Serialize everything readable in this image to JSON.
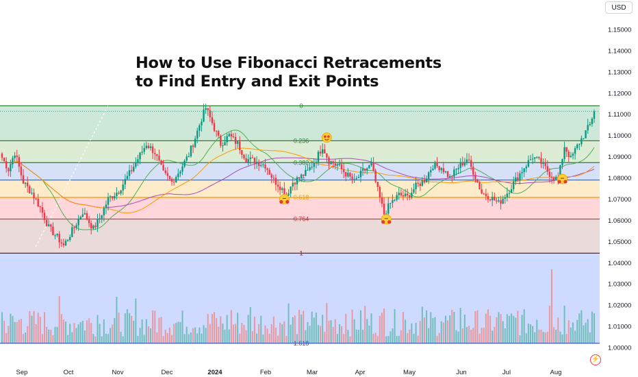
{
  "currency": "USD",
  "headline": {
    "line1": "How to Use Fibonacci Retracements",
    "line2": "to Find Entry and Exit Points"
  },
  "chart_data": {
    "type": "candlestick",
    "y_axis": {
      "min": 0.995,
      "max": 1.16,
      "ticks": [
        "1.15000",
        "1.14000",
        "1.13000",
        "1.12000",
        "1.11000",
        "1.10000",
        "1.09000",
        "1.08000",
        "1.07000",
        "1.06000",
        "1.05000",
        "1.04000",
        "1.03000",
        "1.02000",
        "1.01000",
        "1.00000"
      ]
    },
    "x_axis": {
      "months": [
        "Sep",
        "Oct",
        "Nov",
        "Dec",
        "2024",
        "Feb",
        "Mar",
        "Apr",
        "May",
        "Jun",
        "Jul",
        "Aug"
      ]
    },
    "fib_levels": [
      {
        "label": "0",
        "price": 1.114,
        "color": "#2e7d32"
      },
      {
        "label": "0.236",
        "price": 1.0975,
        "color": "#2e7d32"
      },
      {
        "label": "0.382",
        "price": 1.0872,
        "color": "#2e7d32"
      },
      {
        "label": "0.5",
        "price": 1.079,
        "color": "#4a6fa5"
      },
      {
        "label": "0.618",
        "price": 1.0708,
        "color": "#f59b00"
      },
      {
        "label": "0.764",
        "price": 1.0606,
        "color": "#d32f2f"
      },
      {
        "label": "1",
        "price": 1.0445,
        "color": "#7a1c1c"
      },
      {
        "label": "1.618",
        "price": 1.002,
        "color": "#2a4fb0"
      }
    ],
    "zone_colors": [
      "#c8e6d4",
      "#d8ead0",
      "#d2def7",
      "#fde9c4",
      "#ffd3d6",
      "#e9d6d6",
      "#c9d6ff"
    ],
    "path_points": [
      [
        0,
        1.0895
      ],
      [
        3,
        1.084
      ],
      [
        6,
        1.092
      ],
      [
        10,
        1.078
      ],
      [
        14,
        1.073
      ],
      [
        18,
        1.066
      ],
      [
        22,
        1.0565
      ],
      [
        26,
        1.052
      ],
      [
        29,
        1.048
      ],
      [
        33,
        1.055
      ],
      [
        38,
        1.064
      ],
      [
        43,
        1.056
      ],
      [
        46,
        1.061
      ],
      [
        50,
        1.07
      ],
      [
        55,
        1.074
      ],
      [
        60,
        1.082
      ],
      [
        64,
        1.089
      ],
      [
        68,
        1.096
      ],
      [
        72,
        1.092
      ],
      [
        76,
        1.082
      ],
      [
        80,
        1.078
      ],
      [
        84,
        1.084
      ],
      [
        88,
        1.091
      ],
      [
        91,
        1.099
      ],
      [
        94,
        1.108
      ],
      [
        96,
        1.113
      ],
      [
        99,
        1.106
      ],
      [
        103,
        1.096
      ],
      [
        107,
        1.1
      ],
      [
        111,
        1.096
      ],
      [
        115,
        1.089
      ],
      [
        119,
        1.088
      ],
      [
        124,
        1.086
      ],
      [
        128,
        1.079
      ],
      [
        131,
        1.076
      ],
      [
        134,
        1.072
      ],
      [
        137,
        1.078
      ],
      [
        140,
        1.08
      ],
      [
        144,
        1.083
      ],
      [
        148,
        1.089
      ],
      [
        151,
        1.095
      ],
      [
        154,
        1.088
      ],
      [
        158,
        1.086
      ],
      [
        162,
        1.082
      ],
      [
        166,
        1.078
      ],
      [
        170,
        1.083
      ],
      [
        174,
        1.086
      ],
      [
        177,
        1.074
      ],
      [
        180,
        1.063
      ],
      [
        183,
        1.068
      ],
      [
        187,
        1.072
      ],
      [
        191,
        1.071
      ],
      [
        195,
        1.076
      ],
      [
        199,
        1.079
      ],
      [
        203,
        1.086
      ],
      [
        207,
        1.085
      ],
      [
        211,
        1.08
      ],
      [
        215,
        1.085
      ],
      [
        219,
        1.089
      ],
      [
        222,
        1.083
      ],
      [
        226,
        1.073
      ],
      [
        230,
        1.071
      ],
      [
        234,
        1.068
      ],
      [
        238,
        1.073
      ],
      [
        242,
        1.079
      ],
      [
        246,
        1.085
      ],
      [
        250,
        1.09
      ],
      [
        254,
        1.087
      ],
      [
        258,
        1.082
      ],
      [
        262,
        1.079
      ],
      [
        265,
        1.095
      ],
      [
        268,
        1.089
      ],
      [
        271,
        1.095
      ],
      [
        274,
        1.1
      ],
      [
        277,
        1.105
      ],
      [
        279,
        1.112
      ]
    ],
    "moving_averages": [
      {
        "name": "ma-short",
        "color": "#4caf50"
      },
      {
        "name": "ma-long",
        "color": "#ab47bc"
      },
      {
        "name": "ma-mid",
        "color": "#ff9800"
      }
    ],
    "volume_scale_note": "relative",
    "markers": [
      {
        "type": "heart-eyes-emoji",
        "date_index": 153,
        "price": 1.099
      },
      {
        "type": "hot-face-emoji",
        "date_index": 133,
        "price": 1.07
      },
      {
        "type": "hot-face-emoji",
        "date_index": 181,
        "price": 1.0605
      },
      {
        "type": "hot-face-emoji",
        "date_index": 264,
        "price": 1.0795
      }
    ]
  }
}
